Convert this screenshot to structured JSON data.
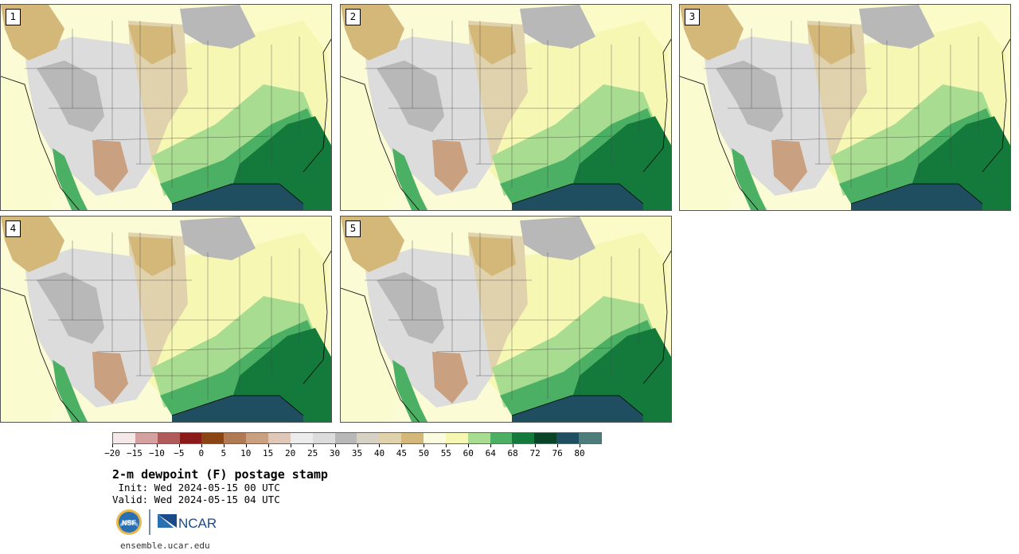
{
  "panels": [
    {
      "label": "1"
    },
    {
      "label": "2"
    },
    {
      "label": "3"
    },
    {
      "label": "4"
    },
    {
      "label": "5"
    }
  ],
  "colorbar": {
    "colors": [
      "#f4e8e8",
      "#d4a0a0",
      "#b05a5a",
      "#8b1a1a",
      "#8b4513",
      "#b07a55",
      "#c9a080",
      "#e0c8b8",
      "#ececec",
      "#dcdcdc",
      "#b8b8b8",
      "#d6d3c6",
      "#e0d2ac",
      "#d4b87a",
      "#fbfbe0",
      "#f7f7b4",
      "#a8dc90",
      "#4cb064",
      "#137a3c",
      "#0a4428",
      "#1f4e60",
      "#4d7c7c"
    ],
    "tick_labels": [
      "−20",
      "−15",
      "−10",
      "−5",
      "0",
      "5",
      "10",
      "15",
      "20",
      "25",
      "30",
      "35",
      "40",
      "45",
      "50",
      "55",
      "60",
      "64",
      "68",
      "72",
      "76",
      "80"
    ]
  },
  "title": "2-m dewpoint (F) postage stamp",
  "init_text": " Init: Wed 2024-05-15 00 UTC",
  "valid_text": "Valid: Wed 2024-05-15 04 UTC",
  "logo_nsf": "NSF",
  "logo_ncar": "NCAR",
  "footer_url": "ensemble.ucar.edu"
}
